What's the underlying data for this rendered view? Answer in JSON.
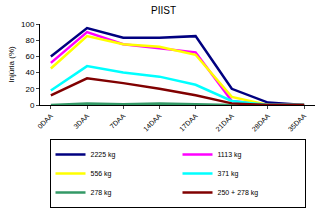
{
  "chart_data": {
    "type": "line",
    "title": "PIIST",
    "y_label": "Injúria (%)",
    "categories": [
      "0DAA",
      "3DAA",
      "7DAA",
      "14DAA",
      "17DAA",
      "21DAA",
      "28DAA",
      "35DAA"
    ],
    "series": [
      {
        "name": "2225 kg",
        "color": "#000080",
        "values": [
          60,
          95,
          83,
          83,
          85,
          20,
          3,
          0
        ]
      },
      {
        "name": "1113 kg",
        "color": "#ff00ff",
        "values": [
          52,
          90,
          75,
          70,
          65,
          5,
          0,
          0
        ]
      },
      {
        "name": "556 kg",
        "color": "#ffff00",
        "values": [
          45,
          85,
          75,
          72,
          62,
          10,
          0,
          0
        ]
      },
      {
        "name": "371 kg",
        "color": "#00ffff",
        "values": [
          18,
          48,
          40,
          35,
          25,
          5,
          0,
          0
        ]
      },
      {
        "name": "278 kg",
        "color": "#339966",
        "values": [
          0,
          2,
          1,
          2,
          1,
          0,
          0,
          0
        ]
      },
      {
        "name": "250 + 278 kg",
        "color": "#800000",
        "values": [
          12,
          33,
          27,
          20,
          12,
          2,
          0,
          0
        ]
      }
    ],
    "ylim": [
      0,
      100
    ],
    "yticks": [
      0,
      20,
      40,
      60,
      80,
      100
    ],
    "grid": false,
    "legend": "bottom"
  }
}
